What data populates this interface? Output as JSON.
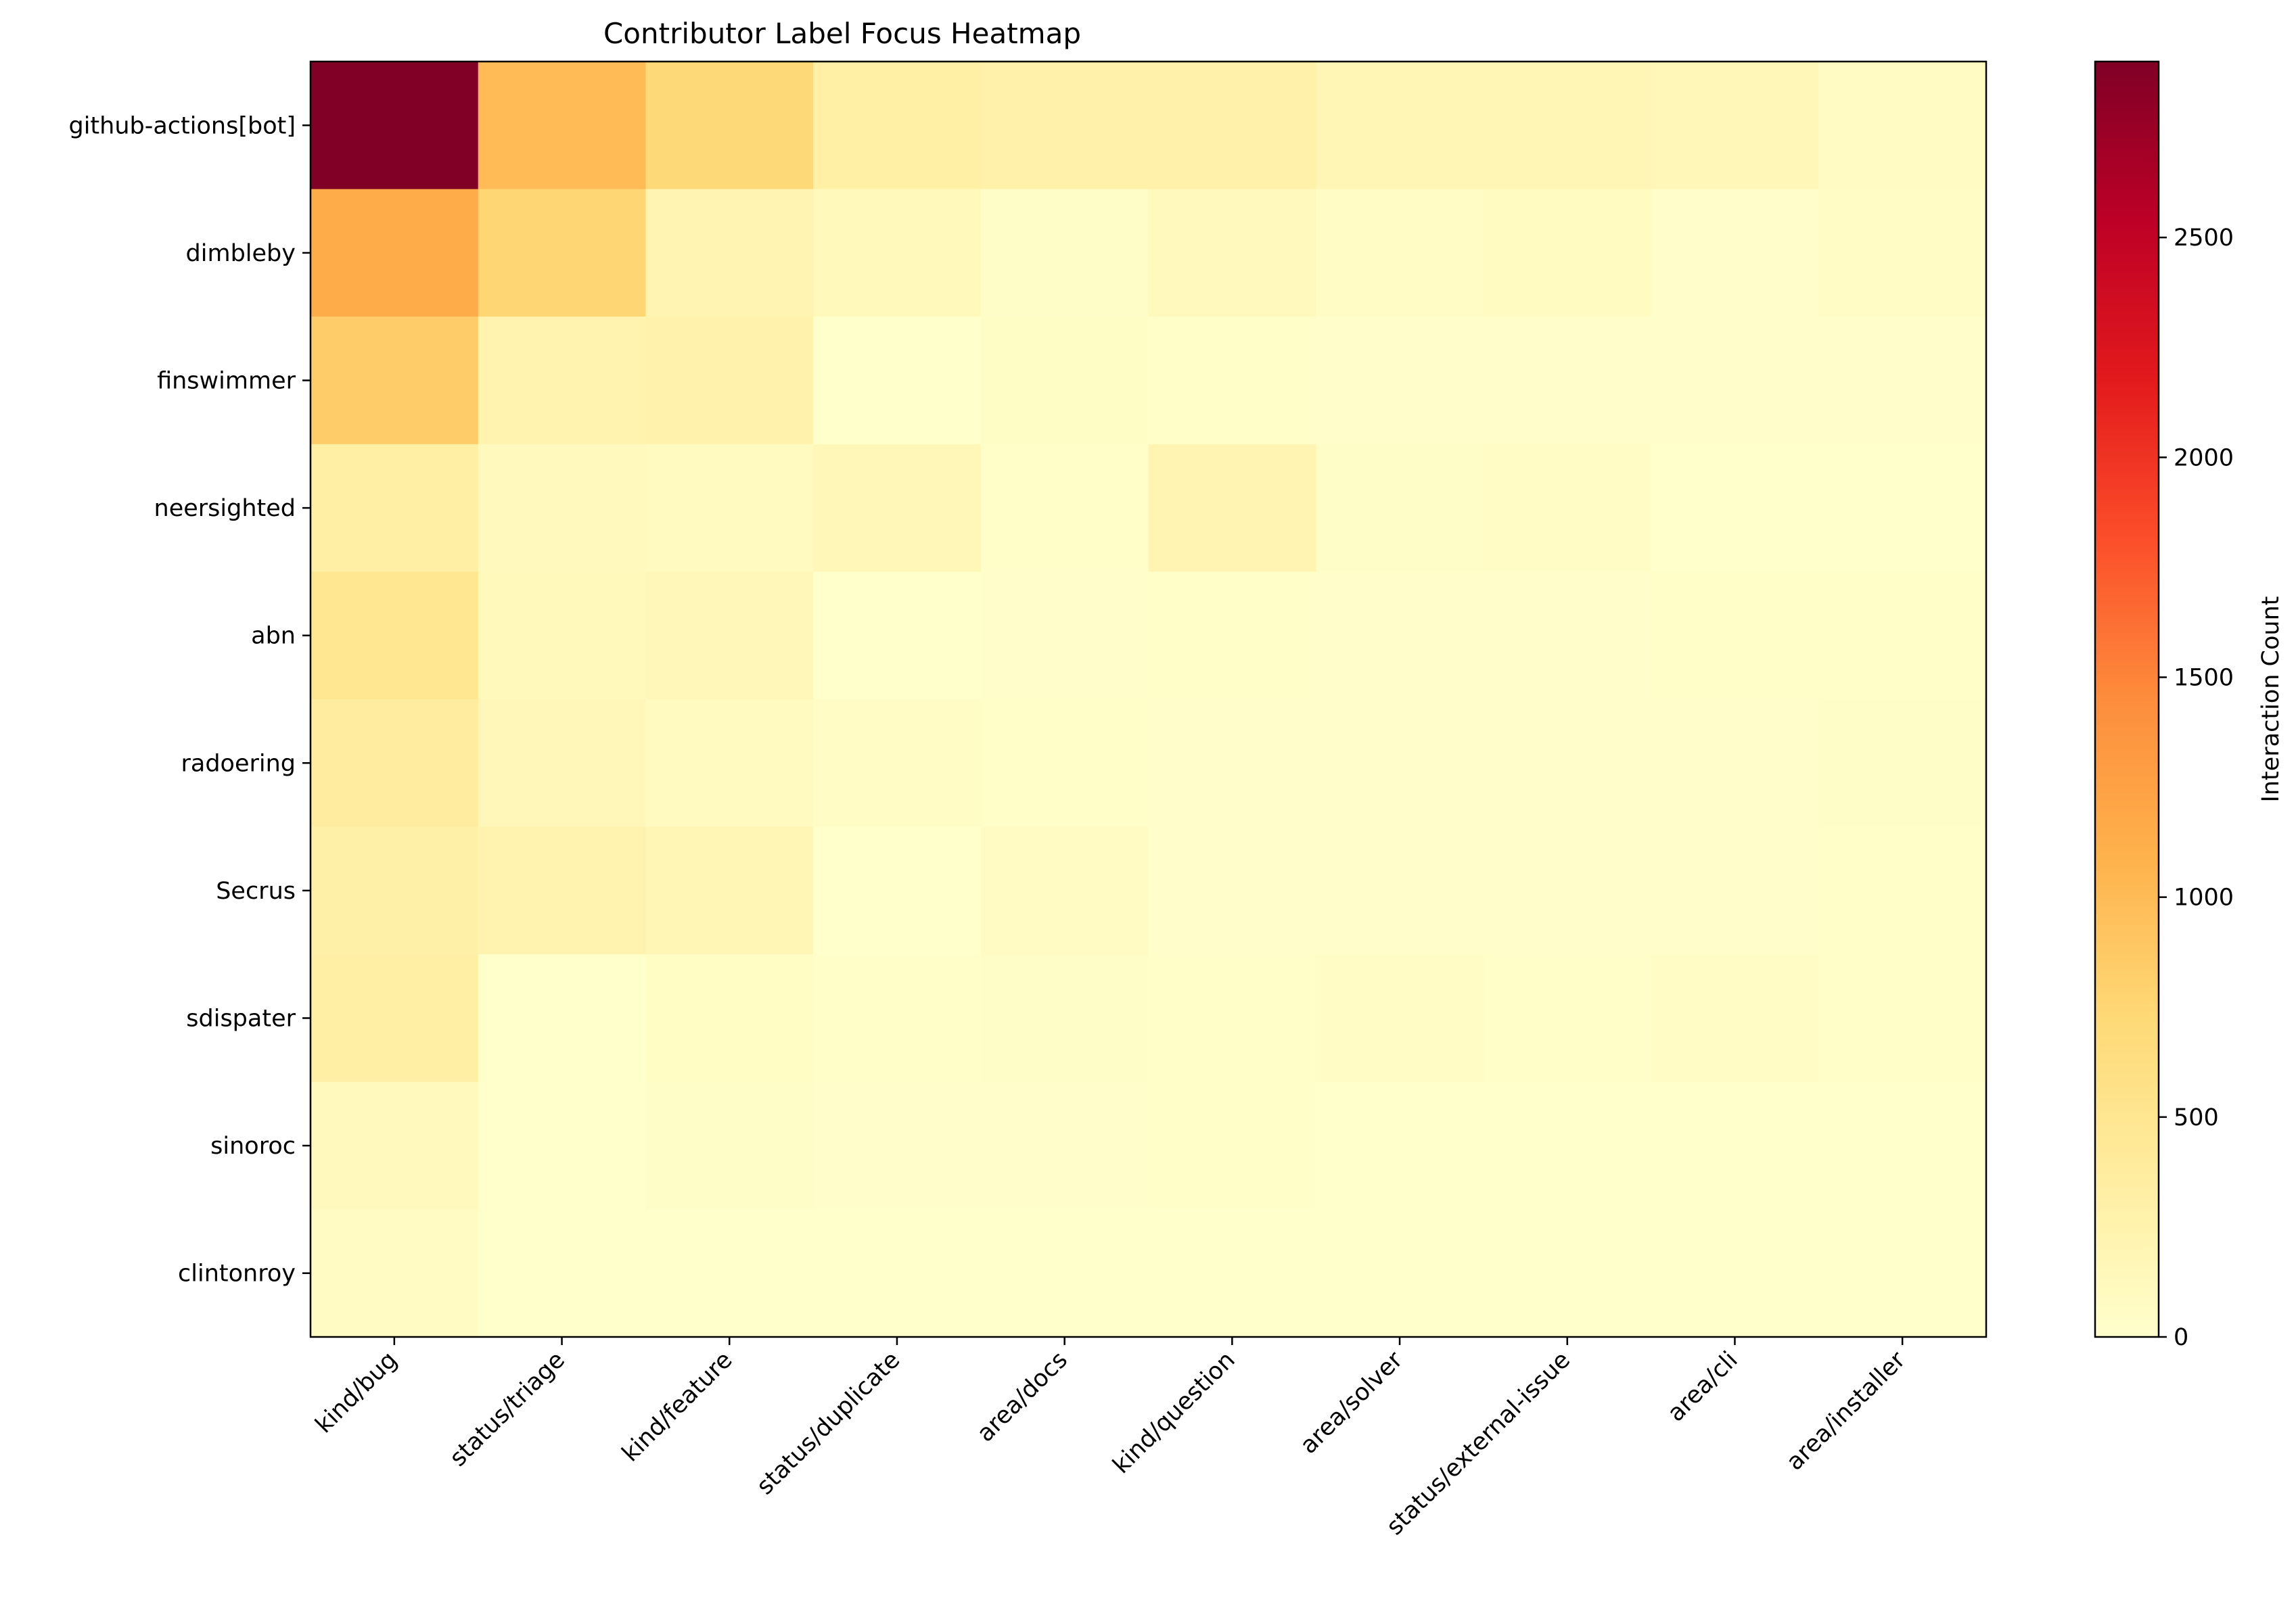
{
  "chart_data": {
    "type": "heatmap",
    "title": "Contributor Label Focus Heatmap",
    "xlabel": "",
    "ylabel": "",
    "rows": [
      "github-actions[bot]",
      "dimbleby",
      "finswimmer",
      "neersighted",
      "abn",
      "radoering",
      "Secrus",
      "sdispater",
      "sinoroc",
      "clintonroy"
    ],
    "columns": [
      "kind/bug",
      "status/triage",
      "kind/feature",
      "status/duplicate",
      "area/docs",
      "kind/question",
      "area/solver",
      "status/external-issue",
      "area/cli",
      "area/installer"
    ],
    "values": [
      [
        2900,
        1000,
        720,
        310,
        280,
        290,
        200,
        190,
        170,
        80
      ],
      [
        1150,
        740,
        220,
        130,
        40,
        120,
        60,
        90,
        20,
        60
      ],
      [
        850,
        240,
        260,
        10,
        50,
        30,
        20,
        20,
        20,
        20
      ],
      [
        330,
        120,
        110,
        170,
        30,
        220,
        40,
        60,
        10,
        10
      ],
      [
        490,
        130,
        160,
        5,
        20,
        30,
        20,
        20,
        30,
        30
      ],
      [
        380,
        160,
        110,
        60,
        30,
        20,
        20,
        20,
        20,
        40
      ],
      [
        300,
        240,
        180,
        10,
        80,
        20,
        20,
        20,
        20,
        30
      ],
      [
        320,
        10,
        70,
        30,
        40,
        30,
        60,
        30,
        60,
        30
      ],
      [
        120,
        10,
        40,
        20,
        20,
        30,
        10,
        10,
        10,
        10
      ],
      [
        80,
        10,
        10,
        5,
        10,
        10,
        10,
        5,
        10,
        10
      ]
    ],
    "colormap": "YlOrRd",
    "vmin": 0,
    "vmax": 2900,
    "colorbar": {
      "label": "Interaction Count",
      "ticks": [
        0,
        500,
        1000,
        1500,
        2000,
        2500
      ]
    }
  }
}
